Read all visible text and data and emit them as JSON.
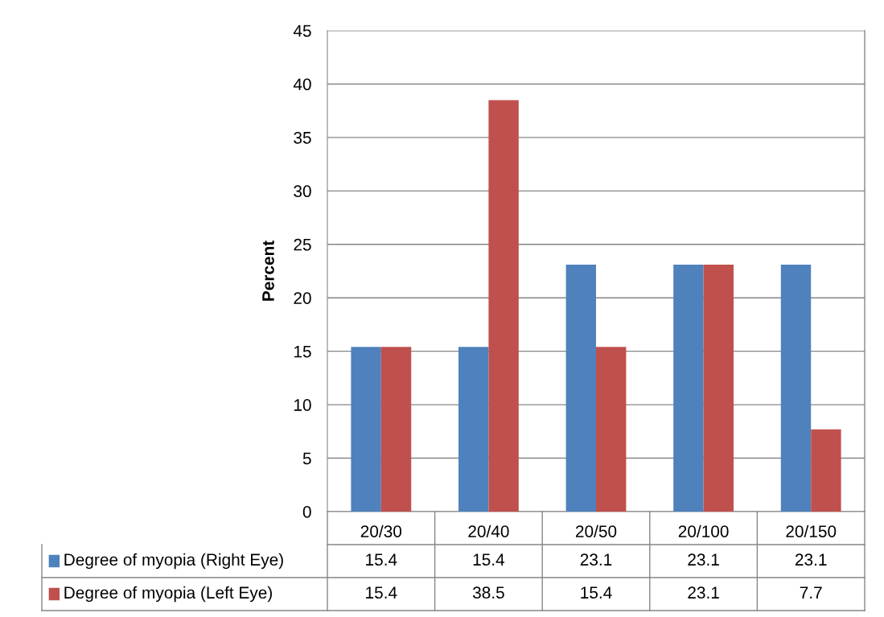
{
  "chart_data": {
    "type": "bar",
    "ylabel": "Percent",
    "categories": [
      "20/30",
      "20/40",
      "20/50",
      "20/100",
      "20/150"
    ],
    "series": [
      {
        "name": "Degree of myopia (Right Eye)",
        "color": "#4f81bd",
        "values": [
          15.4,
          15.4,
          23.1,
          23.1,
          23.1
        ]
      },
      {
        "name": "Degree of myopia (Left Eye)",
        "color": "#c0504d",
        "values": [
          15.4,
          38.5,
          15.4,
          23.1,
          7.7
        ]
      }
    ],
    "ylim": [
      0,
      45
    ],
    "yticks": [
      0,
      5,
      10,
      15,
      20,
      25,
      30,
      35,
      40,
      45
    ],
    "grid": "y",
    "legend": "bottom",
    "data_labels": true
  }
}
